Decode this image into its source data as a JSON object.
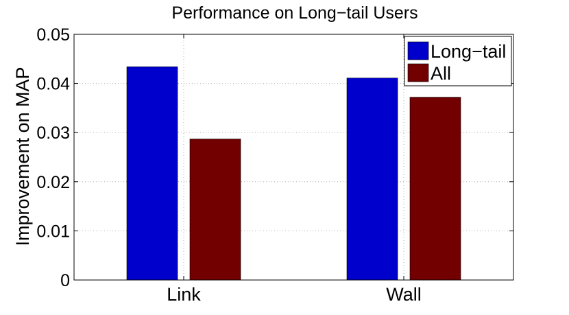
{
  "chart_data": {
    "type": "bar",
    "title": "Performance on Long−tail Users",
    "xlabel": "",
    "ylabel": "Improvement on MAP",
    "categories": [
      "Link",
      "Wall"
    ],
    "series": [
      {
        "name": "Long−tail",
        "color": "#0000cc",
        "values": [
          0.0434,
          0.0411
        ]
      },
      {
        "name": "All",
        "color": "#720000",
        "values": [
          0.0287,
          0.0372
        ]
      }
    ],
    "ylim": [
      0,
      0.05
    ],
    "yticks": [
      0,
      0.01,
      0.02,
      0.03,
      0.04,
      0.05
    ],
    "ytick_labels": [
      "0",
      "0.01",
      "0.02",
      "0.03",
      "0.04",
      "0.05"
    ],
    "grid": true,
    "legend_position": "top-right"
  }
}
